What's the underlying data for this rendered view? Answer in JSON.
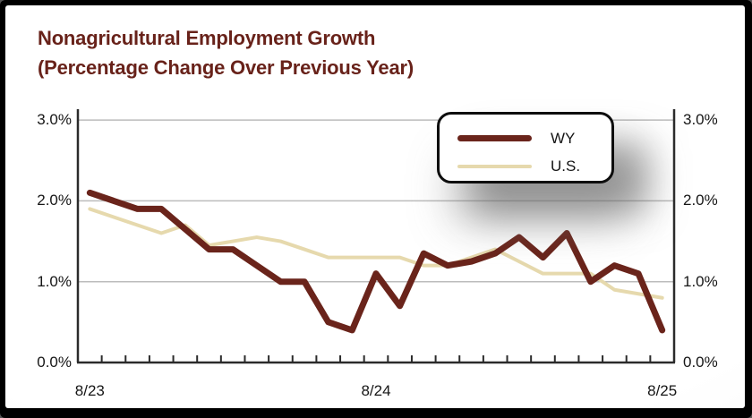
{
  "header": {
    "title_line1": "Nonagricultural Employment Growth",
    "title_line2": "(Percentage Change Over Previous Year)",
    "title_color": "#68221a"
  },
  "colors": {
    "wy_line": "#6a241b",
    "us_line": "#e6d9ad",
    "gridline": "#bcbcbc",
    "axis": "#2b2b2b",
    "tick_text": "#161616",
    "frame": "#000000",
    "legend_border": "#0d0d0d"
  },
  "legend": {
    "items": [
      {
        "label": "WY",
        "swatch": "wy-line"
      },
      {
        "label": "U.S.",
        "swatch": "us-line"
      }
    ]
  },
  "chart_data": {
    "type": "line",
    "title": "Nonagricultural Employment Growth (Percentage Change Over Previous Year)",
    "xlabel": "",
    "ylabel": "",
    "ylim": [
      0,
      3
    ],
    "grid": true,
    "legend_position": "top-right-inside",
    "y_ticks": [
      "0.0%",
      "1.0%",
      "2.0%",
      "3.0%"
    ],
    "y_tick_values": [
      0,
      1,
      2,
      3
    ],
    "x_tick_labels": [
      "8/23",
      "8/24",
      "8/25"
    ],
    "x_label_positions": [
      0,
      12,
      24
    ],
    "categories": [
      "8/23",
      "9/23",
      "10/23",
      "11/23",
      "12/23",
      "1/24",
      "2/24",
      "3/24",
      "4/24",
      "5/24",
      "6/24",
      "7/24",
      "8/24",
      "9/24",
      "10/24",
      "11/24",
      "12/24",
      "1/25",
      "2/25",
      "3/25",
      "4/25",
      "5/25",
      "6/25",
      "7/25",
      "8/25"
    ],
    "series": [
      {
        "name": "WY",
        "color": "#6a241b",
        "line_width": 7,
        "values": [
          2.1,
          2.0,
          1.9,
          1.9,
          1.65,
          1.4,
          1.4,
          1.2,
          1.0,
          1.0,
          0.5,
          0.4,
          1.1,
          0.7,
          1.35,
          1.2,
          1.25,
          1.35,
          1.55,
          1.3,
          1.6,
          1.0,
          1.2,
          1.1,
          0.4
        ]
      },
      {
        "name": "U.S.",
        "color": "#e6d9ad",
        "line_width": 4,
        "values": [
          1.9,
          1.8,
          1.7,
          1.6,
          1.7,
          1.45,
          1.5,
          1.55,
          1.5,
          1.4,
          1.3,
          1.3,
          1.3,
          1.3,
          1.2,
          1.2,
          1.3,
          1.4,
          1.25,
          1.1,
          1.1,
          1.1,
          0.9,
          0.85,
          0.8
        ]
      }
    ]
  }
}
